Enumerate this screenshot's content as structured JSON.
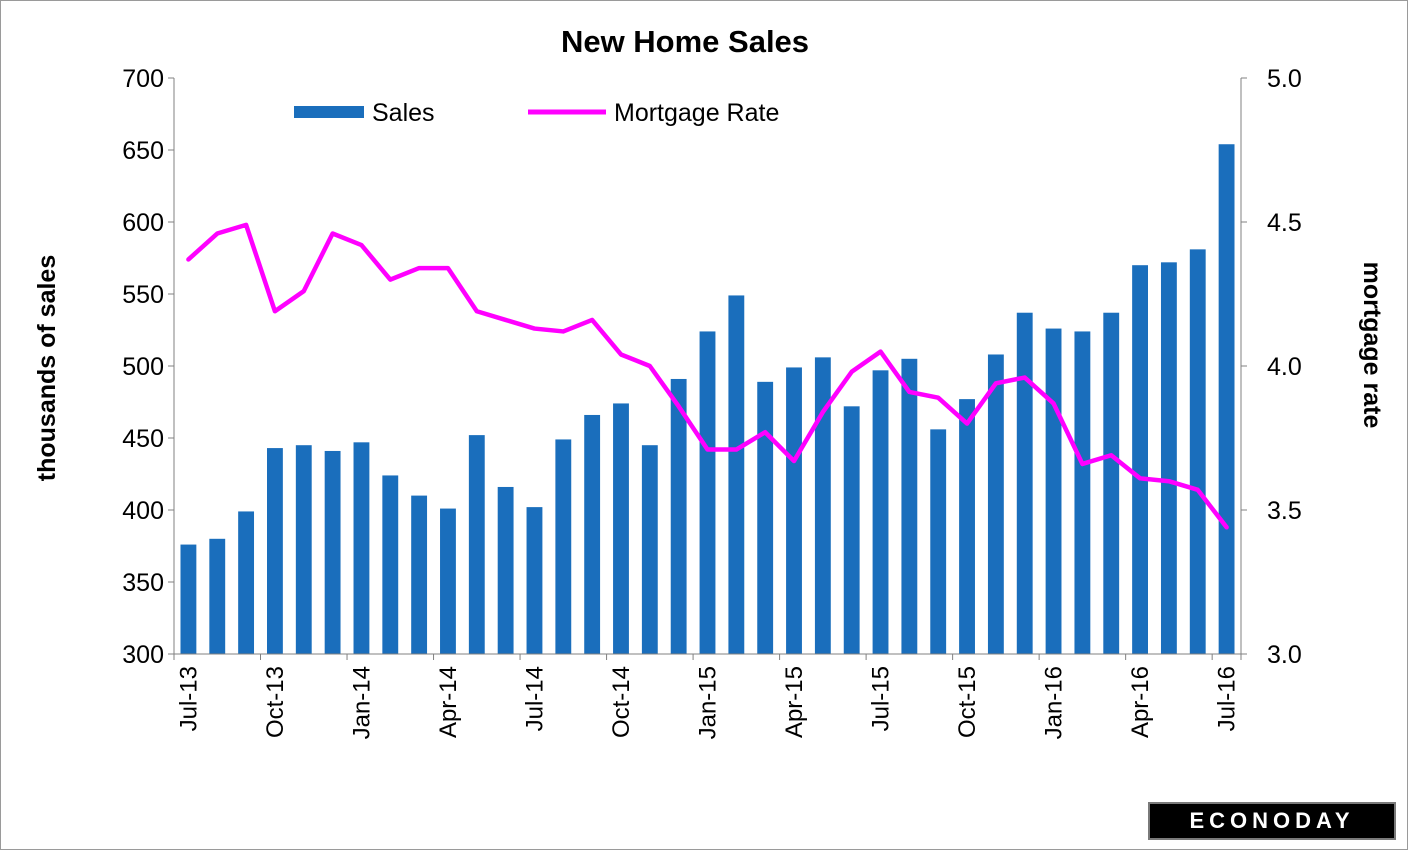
{
  "colors": {
    "bar": "#1a6ebc",
    "line": "#ff00ff",
    "axis": "#808080"
  },
  "chart_data": {
    "type": "bar",
    "title": "New Home  Sales",
    "ylabel": "thousands of sales",
    "y2label": "mortgage rate",
    "ylim": [
      300,
      700
    ],
    "yticks": [
      300,
      350,
      400,
      450,
      500,
      550,
      600,
      650,
      700
    ],
    "y2lim": [
      3.0,
      5.0
    ],
    "y2ticks": [
      "3.0",
      "3.5",
      "4.0",
      "4.5",
      "5.0"
    ],
    "legend_position": "top-left",
    "categories": [
      "Jul-13",
      "Aug-13",
      "Sep-13",
      "Oct-13",
      "Nov-13",
      "Dec-13",
      "Jan-14",
      "Feb-14",
      "Mar-14",
      "Apr-14",
      "May-14",
      "Jun-14",
      "Jul-14",
      "Aug-14",
      "Sep-14",
      "Oct-14",
      "Nov-14",
      "Dec-14",
      "Jan-15",
      "Feb-15",
      "Mar-15",
      "Apr-15",
      "May-15",
      "Jun-15",
      "Jul-15",
      "Aug-15",
      "Sep-15",
      "Oct-15",
      "Nov-15",
      "Dec-15",
      "Jan-16",
      "Feb-16",
      "Mar-16",
      "Apr-16",
      "May-16",
      "Jun-16",
      "Jul-16"
    ],
    "xtick_labels": [
      {
        "index": 0,
        "label": "Jul-13"
      },
      {
        "index": 3,
        "label": "Oct-13"
      },
      {
        "index": 6,
        "label": "Jan-14"
      },
      {
        "index": 9,
        "label": "Apr-14"
      },
      {
        "index": 12,
        "label": "Jul-14"
      },
      {
        "index": 15,
        "label": "Oct-14"
      },
      {
        "index": 18,
        "label": "Jan-15"
      },
      {
        "index": 21,
        "label": "Apr-15"
      },
      {
        "index": 24,
        "label": "Jul-15"
      },
      {
        "index": 27,
        "label": "Oct-15"
      },
      {
        "index": 30,
        "label": "Jan-16"
      },
      {
        "index": 33,
        "label": "Apr-16"
      },
      {
        "index": 36,
        "label": "Jul-16"
      }
    ],
    "series": [
      {
        "name": "Sales",
        "type": "bar",
        "axis": "left",
        "values": [
          376,
          380,
          399,
          443,
          445,
          441,
          447,
          424,
          410,
          401,
          452,
          416,
          402,
          449,
          466,
          474,
          445,
          491,
          524,
          549,
          489,
          499,
          506,
          472,
          497,
          505,
          456,
          477,
          508,
          537,
          526,
          524,
          537,
          570,
          572,
          581,
          654
        ]
      },
      {
        "name": "Mortgage Rate",
        "type": "line",
        "axis": "right",
        "values": [
          4.37,
          4.46,
          4.49,
          4.19,
          4.26,
          4.46,
          4.42,
          4.3,
          4.34,
          4.34,
          4.19,
          4.16,
          4.13,
          4.12,
          4.16,
          4.04,
          4.0,
          3.86,
          3.71,
          3.71,
          3.77,
          3.67,
          3.84,
          3.98,
          4.05,
          3.91,
          3.89,
          3.8,
          3.94,
          3.96,
          3.87,
          3.66,
          3.69,
          3.61,
          3.6,
          3.57,
          3.44
        ]
      }
    ]
  },
  "branding": {
    "logo_text": "ECONODAY"
  }
}
